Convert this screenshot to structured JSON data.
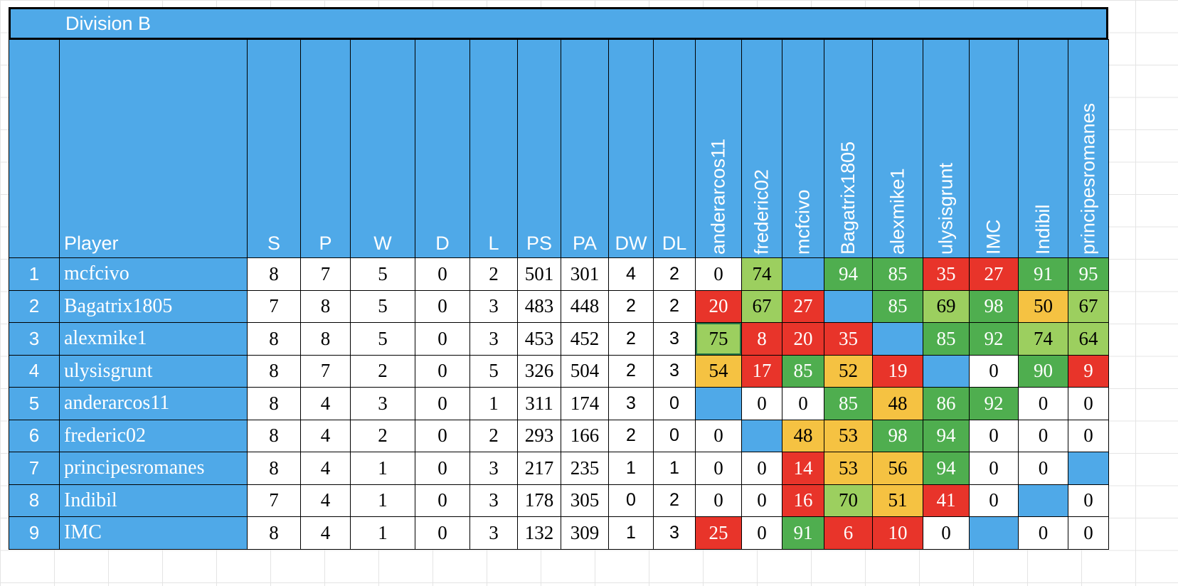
{
  "title": "Division B",
  "player_header": "Player",
  "stat_headers": [
    "S",
    "P",
    "W",
    "D",
    "L",
    "PS",
    "PA",
    "DW",
    "DL"
  ],
  "opponent_headers": [
    "anderarcos11",
    "frederic02",
    "mcfcivo",
    "Bagatrix1805",
    "alexmike1",
    "ulysisgrunt",
    "IMC",
    "Indibil",
    "principesromanes"
  ],
  "rows": [
    {
      "rank": 1,
      "player": "mcfcivo",
      "stats": [
        8,
        7,
        5,
        0,
        2,
        501,
        301,
        4,
        2
      ],
      "results": [
        0,
        74,
        null,
        94,
        85,
        35,
        27,
        91,
        95
      ],
      "colors": [
        "#ffffff",
        "#9ccf5f",
        "#4fa9e8",
        "#4fae4f",
        "#4fae4f",
        "#e8342a",
        "#e8342a",
        "#4fae4f",
        "#4fae4f"
      ]
    },
    {
      "rank": 2,
      "player": "Bagatrix1805",
      "stats": [
        7,
        8,
        5,
        0,
        3,
        483,
        448,
        2,
        2
      ],
      "results": [
        20,
        67,
        27,
        null,
        85,
        69,
        98,
        50,
        67
      ],
      "colors": [
        "#e8342a",
        "#9ccf5f",
        "#e8342a",
        "#4fa9e8",
        "#4fae4f",
        "#9ccf5f",
        "#4fae4f",
        "#f5c242",
        "#9ccf5f"
      ]
    },
    {
      "rank": 3,
      "player": "alexmike1",
      "stats": [
        8,
        8,
        5,
        0,
        3,
        453,
        452,
        2,
        3
      ],
      "results": [
        75,
        8,
        20,
        35,
        null,
        85,
        92,
        74,
        64
      ],
      "colors": [
        "#9ccf5f",
        "#e8342a",
        "#e8342a",
        "#e8342a",
        "#4fa9e8",
        "#4fae4f",
        "#4fae4f",
        "#9ccf5f",
        "#9ccf5f"
      ]
    },
    {
      "rank": 4,
      "player": "ulysisgrunt",
      "stats": [
        8,
        7,
        2,
        0,
        5,
        326,
        504,
        2,
        3
      ],
      "results": [
        54,
        17,
        85,
        52,
        19,
        null,
        0,
        90,
        9
      ],
      "colors": [
        "#f5c242",
        "#e8342a",
        "#4fae4f",
        "#f5c242",
        "#e8342a",
        "#4fa9e8",
        "#ffffff",
        "#4fae4f",
        "#e8342a"
      ]
    },
    {
      "rank": 5,
      "player": "anderarcos11",
      "stats": [
        8,
        4,
        3,
        0,
        1,
        311,
        174,
        3,
        0
      ],
      "results": [
        null,
        0,
        0,
        85,
        48,
        86,
        92,
        0,
        0
      ],
      "colors": [
        "#4fa9e8",
        "#ffffff",
        "#ffffff",
        "#4fae4f",
        "#f5c242",
        "#4fae4f",
        "#4fae4f",
        "#ffffff",
        "#ffffff"
      ]
    },
    {
      "rank": 6,
      "player": "frederic02",
      "stats": [
        8,
        4,
        2,
        0,
        2,
        293,
        166,
        2,
        0
      ],
      "results": [
        0,
        null,
        48,
        53,
        98,
        94,
        0,
        0,
        0
      ],
      "colors": [
        "#ffffff",
        "#4fa9e8",
        "#f5c242",
        "#f5c242",
        "#4fae4f",
        "#4fae4f",
        "#ffffff",
        "#ffffff",
        "#ffffff"
      ]
    },
    {
      "rank": 7,
      "player": "principesromanes",
      "stats": [
        8,
        4,
        1,
        0,
        3,
        217,
        235,
        1,
        1
      ],
      "results": [
        0,
        0,
        14,
        53,
        56,
        94,
        0,
        0,
        null
      ],
      "colors": [
        "#ffffff",
        "#ffffff",
        "#e8342a",
        "#f5c242",
        "#f5c242",
        "#4fae4f",
        "#ffffff",
        "#ffffff",
        "#4fa9e8"
      ]
    },
    {
      "rank": 8,
      "player": "Indibil",
      "stats": [
        7,
        4,
        1,
        0,
        3,
        178,
        305,
        0,
        2
      ],
      "results": [
        0,
        0,
        16,
        70,
        51,
        41,
        0,
        null,
        0
      ],
      "colors": [
        "#ffffff",
        "#ffffff",
        "#e8342a",
        "#9ccf5f",
        "#f5c242",
        "#e8342a",
        "#ffffff",
        "#4fa9e8",
        "#ffffff"
      ]
    },
    {
      "rank": 9,
      "player": "IMC",
      "stats": [
        8,
        4,
        1,
        0,
        3,
        132,
        309,
        1,
        3
      ],
      "results": [
        25,
        0,
        91,
        6,
        10,
        0,
        null,
        0,
        0
      ],
      "colors": [
        "#e8342a",
        "#ffffff",
        "#4fae4f",
        "#e8342a",
        "#e8342a",
        "#ffffff",
        "#4fa9e8",
        "#ffffff",
        "#ffffff"
      ]
    }
  ]
}
